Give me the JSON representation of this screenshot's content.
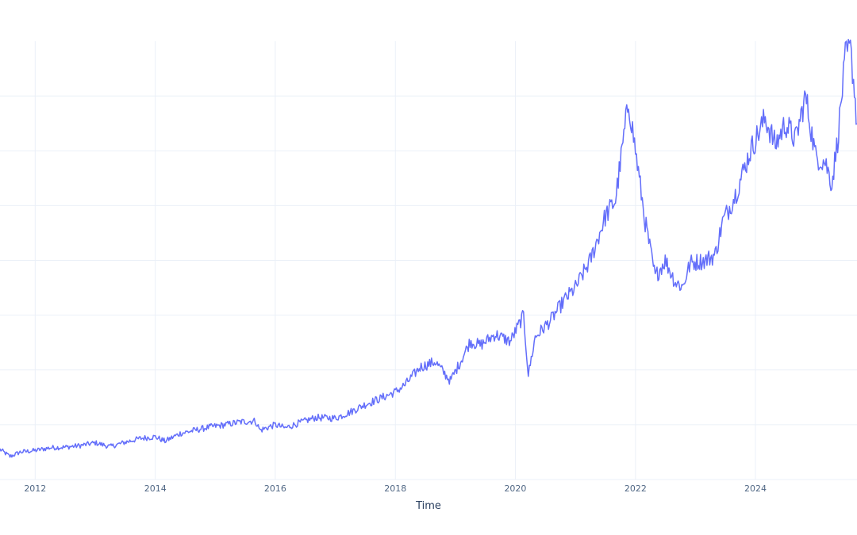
{
  "chart_data": {
    "type": "line",
    "title": "",
    "xlabel": "Time",
    "ylabel": "",
    "x_tick_labels": [
      "2012",
      "2014",
      "2016",
      "2018",
      "2020",
      "2022",
      "2024"
    ],
    "xlim": [
      "2011-06-01",
      "2025-09-10"
    ],
    "ylim": [
      0,
      80
    ],
    "grid": true,
    "line_color": "#636efa",
    "series": [
      {
        "points": [
          [
            "2011-06-01",
            5.5
          ],
          [
            "2011-08-01",
            4.2
          ],
          [
            "2011-10-01",
            5.0
          ],
          [
            "2012-01-01",
            5.3
          ],
          [
            "2012-04-01",
            5.8
          ],
          [
            "2012-07-01",
            5.9
          ],
          [
            "2012-10-01",
            6.2
          ],
          [
            "2013-01-01",
            6.7
          ],
          [
            "2013-04-01",
            6.0
          ],
          [
            "2013-07-01",
            6.8
          ],
          [
            "2013-10-01",
            7.5
          ],
          [
            "2014-01-01",
            7.8
          ],
          [
            "2014-03-01",
            7.0
          ],
          [
            "2014-06-01",
            8.4
          ],
          [
            "2014-09-01",
            9.0
          ],
          [
            "2014-12-01",
            9.6
          ],
          [
            "2015-03-01",
            10.0
          ],
          [
            "2015-06-01",
            10.5
          ],
          [
            "2015-09-01",
            10.7
          ],
          [
            "2015-10-01",
            9.0
          ],
          [
            "2016-01-01",
            10.0
          ],
          [
            "2016-03-01",
            9.4
          ],
          [
            "2016-06-01",
            10.4
          ],
          [
            "2016-09-01",
            11.3
          ],
          [
            "2017-01-01",
            11.2
          ],
          [
            "2017-04-01",
            12.3
          ],
          [
            "2017-07-01",
            13.7
          ],
          [
            "2017-10-01",
            14.8
          ],
          [
            "2018-01-01",
            16.0
          ],
          [
            "2018-03-01",
            17.3
          ],
          [
            "2018-06-01",
            20.5
          ],
          [
            "2018-09-01",
            21.5
          ],
          [
            "2018-12-01",
            18.0
          ],
          [
            "2019-02-01",
            21.5
          ],
          [
            "2019-04-01",
            25.2
          ],
          [
            "2019-06-01",
            24.5
          ],
          [
            "2019-09-01",
            26.5
          ],
          [
            "2019-12-01",
            25.2
          ],
          [
            "2020-02-20",
            29.9
          ],
          [
            "2020-03-20",
            19.1
          ],
          [
            "2020-05-01",
            26.0
          ],
          [
            "2020-08-01",
            29.0
          ],
          [
            "2020-11-01",
            33.0
          ],
          [
            "2021-01-01",
            35.0
          ],
          [
            "2021-04-01",
            40.0
          ],
          [
            "2021-07-01",
            48.0
          ],
          [
            "2021-09-01",
            51.0
          ],
          [
            "2021-11-20",
            69.0
          ],
          [
            "2022-01-01",
            60.0
          ],
          [
            "2022-03-01",
            47.0
          ],
          [
            "2022-05-01",
            37.0
          ],
          [
            "2022-07-01",
            40.0
          ],
          [
            "2022-09-01",
            36.0
          ],
          [
            "2022-10-15",
            35.2
          ],
          [
            "2022-12-01",
            39.5
          ],
          [
            "2023-03-01",
            40.0
          ],
          [
            "2023-05-01",
            41.0
          ],
          [
            "2023-06-15",
            47.0
          ],
          [
            "2023-09-01",
            52.0
          ],
          [
            "2023-12-01",
            60.0
          ],
          [
            "2024-03-01",
            66.0
          ],
          [
            "2024-05-01",
            61.0
          ],
          [
            "2024-07-01",
            65.0
          ],
          [
            "2024-09-01",
            62.0
          ],
          [
            "2024-11-01",
            70.0
          ],
          [
            "2025-01-01",
            59.0
          ],
          [
            "2025-03-01",
            58.0
          ],
          [
            "2025-04-10",
            54.0
          ],
          [
            "2025-05-15",
            62.0
          ],
          [
            "2025-07-01",
            77.0
          ],
          [
            "2025-08-01",
            78.5
          ],
          [
            "2025-08-20",
            73.0
          ],
          [
            "2025-09-10",
            65.0
          ]
        ]
      }
    ]
  }
}
